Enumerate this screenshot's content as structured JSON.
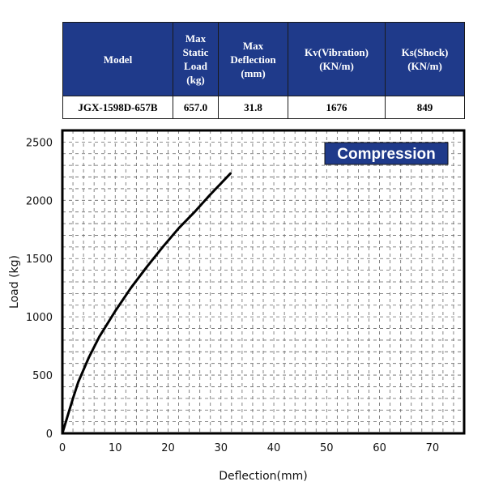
{
  "colors": {
    "header_bg": "#1f3a8a",
    "header_text": "#ffffff",
    "line": "#000000",
    "grid": "#666666"
  },
  "table": {
    "headers": [
      "Model",
      "Max Static Load (kg)",
      "Max Deflection (mm)",
      "Kv(Vibration) (KN/m)",
      "Ks(Shock) (KN/m)"
    ],
    "row": [
      "JGX-1598D-657B",
      "657.0",
      "31.8",
      "1676",
      "849"
    ]
  },
  "chart_data": {
    "type": "line",
    "title": "",
    "annotation": "Compression",
    "xlabel": "Deflection(mm)",
    "ylabel": "Load (kg)",
    "xlim": [
      0,
      76
    ],
    "ylim": [
      0,
      2600
    ],
    "xticks": [
      0,
      10,
      20,
      30,
      40,
      50,
      60,
      70
    ],
    "yticks": [
      0,
      500,
      1000,
      1500,
      2000,
      2500
    ],
    "grid": true,
    "series": [
      {
        "x": [
          0,
          1,
          2,
          3,
          5,
          7,
          10,
          13,
          16,
          19,
          22,
          25,
          28,
          31.8
        ],
        "y": [
          0,
          150,
          300,
          440,
          650,
          830,
          1050,
          1250,
          1430,
          1600,
          1760,
          1900,
          2050,
          2230
        ]
      }
    ]
  }
}
